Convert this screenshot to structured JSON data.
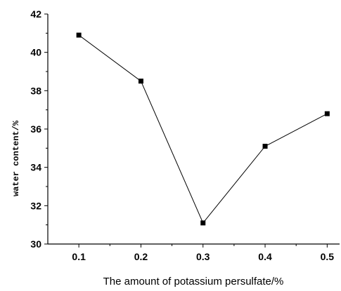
{
  "chart_data": {
    "type": "line",
    "title": "",
    "xlabel": "The amount of potassium persulfate/%",
    "ylabel": "water content/%",
    "x": [
      0.1,
      0.2,
      0.3,
      0.4,
      0.5
    ],
    "series": [
      {
        "values": [
          40.9,
          38.5,
          31.1,
          35.1,
          36.8
        ]
      }
    ],
    "xlim": [
      0.05,
      0.52
    ],
    "ylim": [
      30,
      42
    ],
    "xticks": [
      "0.1",
      "0.2",
      "0.3",
      "0.4",
      "0.5"
    ],
    "yticks": [
      "30",
      "32",
      "34",
      "36",
      "38",
      "40",
      "42"
    ],
    "marker": "square",
    "line_color": "#000000",
    "grid": false,
    "legend": "none"
  }
}
